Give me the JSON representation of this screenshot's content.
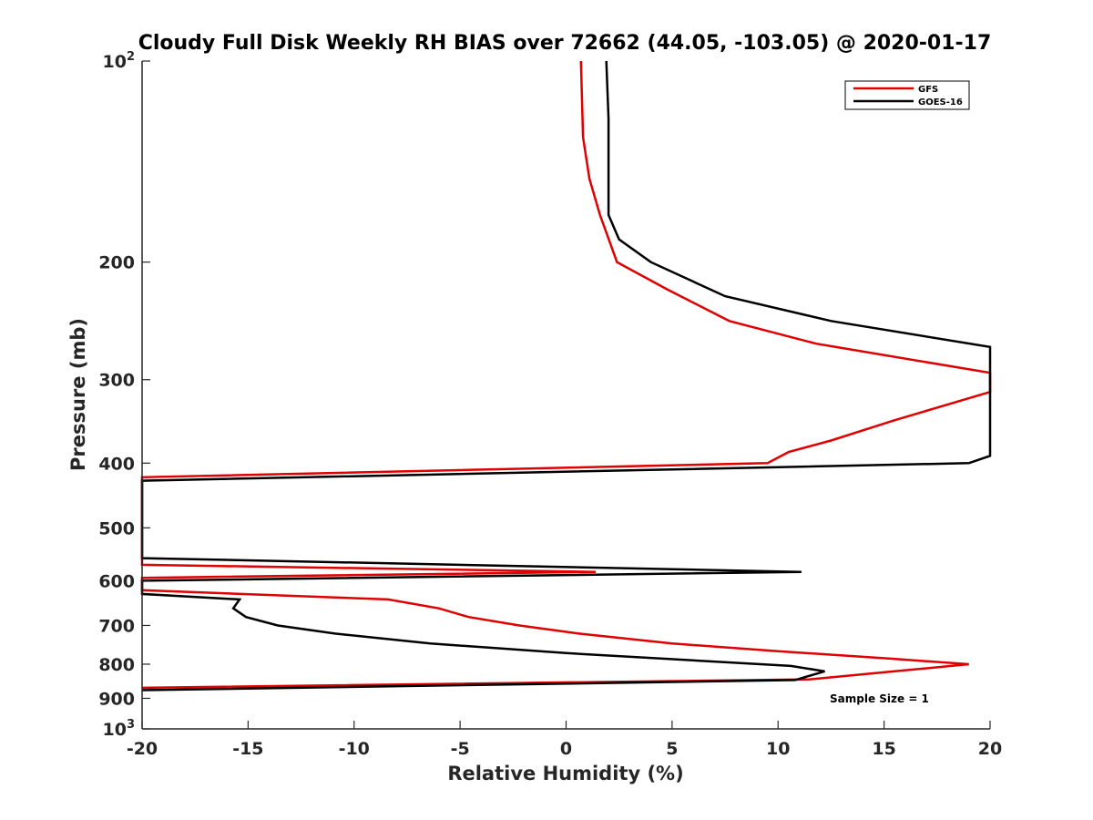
{
  "chart_data": {
    "type": "line",
    "title": "Cloudy Full Disk Weekly RH BIAS over 72662 (44.05, -103.05) @ 2020-01-17",
    "xlabel": "Relative Humidity (%)",
    "ylabel": "Pressure (mb)",
    "xlim": [
      -20,
      20
    ],
    "ylim": [
      1000,
      100
    ],
    "y_scale": "log",
    "y_reversed": true,
    "grid": false,
    "legend_position": "top-right",
    "x_ticks": [
      -20,
      -15,
      -10,
      -5,
      0,
      5,
      10,
      15,
      20
    ],
    "x_tick_labels": [
      "-20",
      "-15",
      "-10",
      "-5",
      "0",
      "5",
      "10",
      "15",
      "20"
    ],
    "y_ticks": [
      {
        "value": 100,
        "base": "10",
        "exp": "2"
      },
      {
        "value": 200,
        "label": "200"
      },
      {
        "value": 300,
        "label": "300"
      },
      {
        "value": 400,
        "label": "400"
      },
      {
        "value": 500,
        "label": "500"
      },
      {
        "value": 600,
        "label": "600"
      },
      {
        "value": 700,
        "label": "700"
      },
      {
        "value": 800,
        "label": "800"
      },
      {
        "value": 900,
        "label": "900"
      },
      {
        "value": 1000,
        "base": "10",
        "exp": "3"
      }
    ],
    "annotation": "Sample Size = 1",
    "series": [
      {
        "name": "GFS",
        "color": "#e00000",
        "points": [
          [
            0.7,
            100
          ],
          [
            0.8,
            130
          ],
          [
            1.1,
            150
          ],
          [
            1.6,
            170
          ],
          [
            2.4,
            200
          ],
          [
            4.8,
            220
          ],
          [
            7.7,
            245
          ],
          [
            11.8,
            265
          ],
          [
            20,
            293
          ],
          [
            20,
            313
          ],
          [
            15.5,
            345
          ],
          [
            12.5,
            370
          ],
          [
            10.5,
            385
          ],
          [
            9.5,
            400
          ],
          [
            -20,
            420
          ],
          [
            -20,
            568
          ],
          [
            1.4,
            582
          ],
          [
            -20,
            594
          ],
          [
            -20,
            620
          ],
          [
            -8.4,
            640
          ],
          [
            -6,
            660
          ],
          [
            -4.6,
            680
          ],
          [
            -2.2,
            700
          ],
          [
            0.6,
            720
          ],
          [
            5,
            745
          ],
          [
            10,
            765
          ],
          [
            15.3,
            785
          ],
          [
            19,
            800
          ],
          [
            15.5,
            820
          ],
          [
            11.5,
            843
          ],
          [
            -20,
            868
          ]
        ]
      },
      {
        "name": "GOES-16",
        "color": "#000000",
        "points": [
          [
            1.9,
            100
          ],
          [
            2.0,
            122
          ],
          [
            2.0,
            170
          ],
          [
            2.5,
            185
          ],
          [
            4,
            200
          ],
          [
            7.5,
            225
          ],
          [
            12.5,
            245
          ],
          [
            20,
            268
          ],
          [
            20,
            390
          ],
          [
            19,
            400
          ],
          [
            -20,
            425
          ],
          [
            -20,
            555
          ],
          [
            11.1,
            582
          ],
          [
            -20,
            600
          ],
          [
            -20,
            628
          ],
          [
            -15.4,
            640
          ],
          [
            -15.7,
            660
          ],
          [
            -15.1,
            680
          ],
          [
            -13.6,
            700
          ],
          [
            -10.9,
            720
          ],
          [
            -6.4,
            745
          ],
          [
            0,
            770
          ],
          [
            10.6,
            805
          ],
          [
            12.2,
            820
          ],
          [
            10.8,
            845
          ],
          [
            -20,
            875
          ]
        ]
      }
    ]
  }
}
